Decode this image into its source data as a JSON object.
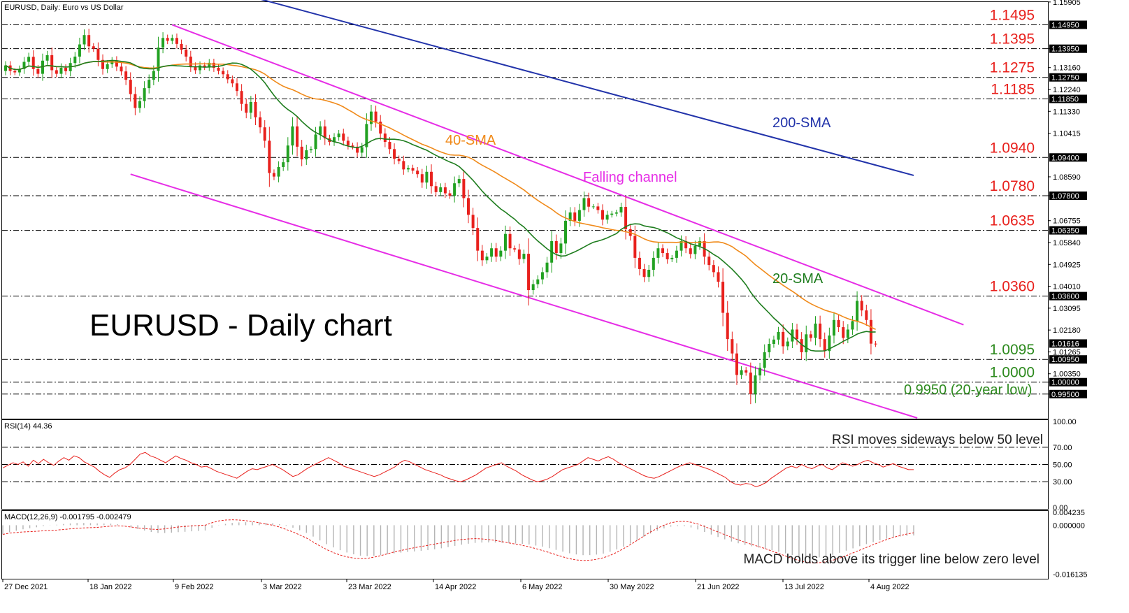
{
  "header": {
    "main_title": "EURUSD, Daily:  Euro vs US Dollar",
    "rsi_title": "RSI(14) 44.36",
    "macd_title": "MACD(12,26,9) -0.001795 -0.002479"
  },
  "overlay": {
    "big_title": "EURUSD - Daily chart",
    "sma200_label": "200-SMA",
    "sma40_label": "40-SMA",
    "sma20_label": "20-SMA",
    "channel_label": "Falling channel",
    "rsi_note": "RSI moves sideways below 50 level",
    "macd_note": "MACD holds above its trigger line below zero level",
    "low_note": "0.9950 (20-year low)"
  },
  "colors": {
    "bull": "#21a121",
    "bear": "#e8201c",
    "sma20": "#1e7d1e",
    "sma40": "#f08a1a",
    "sma200": "#2233aa",
    "channel": "#e62de6",
    "level_red": "#e8201c",
    "level_green": "#2d8a1e",
    "rsi_line": "#e8201c",
    "macd_signal": "#e8201c",
    "macd_hist": "#b4b4b4"
  },
  "chart_data": {
    "type": "candlestick",
    "title": "EURUSD, Daily:  Euro vs US Dollar",
    "x_labels": [
      "27 Dec 2021",
      "18 Jan 2022",
      "9 Feb 2022",
      "3 Mar 2022",
      "23 Mar 2022",
      "14 Apr 2022",
      "6 May 2022",
      "30 May 2022",
      "21 Jun 2022",
      "13 Jul 2022",
      "4 Aug 2022"
    ],
    "price_axis": {
      "ylim": [
        0.985,
        1.159
      ],
      "ticks": [
        "1.15905",
        "1.13950",
        "1.13160",
        "1.12240",
        "1.11330",
        "1.10415",
        "1.08590",
        "1.07800",
        "1.06755",
        "1.05840",
        "1.04925",
        "1.04010",
        "1.03095",
        "1.02180",
        "1.01265",
        "1.00350",
        "1.00000",
        "0.99500"
      ],
      "marked_levels": [
        {
          "value": 1.1495,
          "label": "1.1495",
          "tag": "1.14950",
          "color": "red"
        },
        {
          "value": 1.1395,
          "label": "1.1395",
          "tag": "1.13950",
          "color": "red"
        },
        {
          "value": 1.1275,
          "label": "1.1275",
          "tag": "1.12750",
          "color": "red"
        },
        {
          "value": 1.1185,
          "label": "1.1185",
          "tag": "1.11850",
          "color": "red"
        },
        {
          "value": 1.094,
          "label": "1.0940",
          "tag": "1.09400",
          "color": "red"
        },
        {
          "value": 1.078,
          "label": "1.0780",
          "tag": "1.07800",
          "color": "red"
        },
        {
          "value": 1.0635,
          "label": "1.0635",
          "tag": "1.06350",
          "color": "red"
        },
        {
          "value": 1.036,
          "label": "1.0360",
          "tag": "1.03600",
          "color": "red"
        },
        {
          "value": 1.0095,
          "label": "1.0095",
          "tag": "1.00950",
          "color": "green"
        },
        {
          "value": 1.0,
          "label": "1.0000",
          "tag": "1.00000",
          "color": "green"
        },
        {
          "value": 0.995,
          "label": "",
          "tag": "0.99500",
          "color": "green"
        }
      ],
      "current_price": {
        "value": 1.01616,
        "tag": "1.01616"
      }
    },
    "candles_close": [
      1.1325,
      1.1302,
      1.1296,
      1.131,
      1.134,
      1.1361,
      1.131,
      1.129,
      1.1345,
      1.1368,
      1.1305,
      1.129,
      1.1315,
      1.1301,
      1.1335,
      1.1362,
      1.1413,
      1.1452,
      1.1405,
      1.1395,
      1.1348,
      1.131,
      1.133,
      1.1345,
      1.132,
      1.13,
      1.1265,
      1.1205,
      1.1147,
      1.1176,
      1.123,
      1.1265,
      1.1302,
      1.14,
      1.144,
      1.1428,
      1.144,
      1.1415,
      1.1391,
      1.1362,
      1.1322,
      1.1305,
      1.1325,
      1.1318,
      1.1336,
      1.1315,
      1.1302,
      1.1288,
      1.1267,
      1.125,
      1.1218,
      1.1164,
      1.1127,
      1.1172,
      1.1108,
      1.1066,
      1.101,
      1.0875,
      1.086,
      1.09,
      1.092,
      1.099,
      1.107,
      1.0985,
      1.0932,
      1.097,
      1.0975,
      1.1036,
      1.107,
      1.102,
      1.1005,
      1.1025,
      1.104,
      1.101,
      1.099,
      1.0985,
      1.096,
      1.0983,
      1.108,
      1.1132,
      1.109,
      1.104,
      1.1005,
      1.0975,
      1.0935,
      1.0925,
      1.089,
      1.0896,
      1.0885,
      1.087,
      1.0835,
      1.088,
      1.082,
      1.0795,
      1.0815,
      1.079,
      1.078,
      1.0832,
      1.085,
      1.077,
      1.07,
      1.0645,
      1.055,
      1.051,
      1.0525,
      1.056,
      1.0525,
      1.055,
      1.062,
      1.056,
      1.0555,
      1.0515,
      1.0537,
      1.0385,
      1.041,
      1.043,
      1.046,
      1.05,
      1.059,
      1.054,
      1.058,
      1.0675,
      1.071,
      1.0675,
      1.072,
      1.077,
      1.0734,
      1.0735,
      1.072,
      1.068,
      1.07,
      1.0705,
      1.071,
      1.0733,
      1.064,
      1.0612,
      1.052,
      1.0473,
      1.044,
      1.047,
      1.052,
      1.056,
      1.054,
      1.0514,
      1.052,
      1.055,
      1.059,
      1.056,
      1.0536,
      1.057,
      1.059,
      1.0525,
      1.049,
      1.046,
      1.042,
      1.029,
      1.018,
      1.012,
      1.003,
      1.005,
      1.004,
      0.995,
      1.0028,
      1.006,
      1.0125,
      1.016,
      1.0178,
      1.021,
      1.015,
      1.017,
      1.022,
      1.018,
      1.0125,
      1.02,
      1.0185,
      1.0245,
      1.018,
      1.013,
      1.0195,
      1.026,
      1.023,
      1.0185,
      1.022,
      1.0255,
      1.034,
      1.03,
      1.026,
      1.0161,
      1.0158
    ],
    "candles_open": [
      1.1302,
      1.1325,
      1.1302,
      1.1296,
      1.131,
      1.134,
      1.1361,
      1.131,
      1.129,
      1.1345,
      1.1368,
      1.1305,
      1.129,
      1.1315,
      1.1301,
      1.1335,
      1.1362,
      1.1413,
      1.1452,
      1.1405,
      1.1395,
      1.1348,
      1.131,
      1.133,
      1.1345,
      1.132,
      1.13,
      1.1265,
      1.1205,
      1.1147,
      1.1176,
      1.123,
      1.1265,
      1.1302,
      1.14,
      1.144,
      1.1428,
      1.144,
      1.1415,
      1.1391,
      1.1362,
      1.1322,
      1.1305,
      1.1325,
      1.1318,
      1.1336,
      1.1315,
      1.1302,
      1.1288,
      1.1267,
      1.125,
      1.1218,
      1.1164,
      1.1127,
      1.1172,
      1.1108,
      1.1066,
      1.101,
      1.0875,
      1.086,
      1.09,
      1.092,
      1.099,
      1.107,
      1.0985,
      1.0932,
      1.097,
      1.0975,
      1.1036,
      1.107,
      1.102,
      1.1005,
      1.1025,
      1.104,
      1.101,
      1.099,
      1.0985,
      1.096,
      1.0983,
      1.108,
      1.1132,
      1.109,
      1.104,
      1.1005,
      1.0975,
      1.0935,
      1.0925,
      1.089,
      1.0896,
      1.0885,
      1.087,
      1.0835,
      1.088,
      1.082,
      1.0795,
      1.0815,
      1.079,
      1.078,
      1.0832,
      1.085,
      1.077,
      1.07,
      1.0645,
      1.055,
      1.051,
      1.0525,
      1.056,
      1.0525,
      1.055,
      1.062,
      1.056,
      1.0555,
      1.0515,
      1.0537,
      1.0385,
      1.041,
      1.043,
      1.046,
      1.05,
      1.059,
      1.054,
      1.058,
      1.0675,
      1.071,
      1.0675,
      1.072,
      1.077,
      1.0734,
      1.0735,
      1.072,
      1.068,
      1.07,
      1.0705,
      1.071,
      1.0733,
      1.064,
      1.0612,
      1.052,
      1.0473,
      1.044,
      1.047,
      1.052,
      1.056,
      1.054,
      1.0514,
      1.052,
      1.055,
      1.059,
      1.056,
      1.0536,
      1.057,
      1.059,
      1.0525,
      1.049,
      1.046,
      1.042,
      1.029,
      1.018,
      1.012,
      1.003,
      1.005,
      1.004,
      0.995,
      1.0028,
      1.006,
      1.0125,
      1.016,
      1.0178,
      1.021,
      1.015,
      1.017,
      1.022,
      1.018,
      1.0125,
      1.02,
      1.0185,
      1.0245,
      1.018,
      1.013,
      1.0195,
      1.026,
      1.023,
      1.0185,
      1.022,
      1.0255,
      1.034,
      1.03,
      1.026,
      1.0161
    ],
    "sma200": {
      "label": "200-SMA",
      "start": 1.162,
      "end": 1.0865
    },
    "channel": {
      "label": "Falling channel",
      "upper": [
        [
          36,
          1.1495
        ],
        [
          207,
          1.024
        ]
      ],
      "lower": [
        [
          27,
          1.087
        ],
        [
          197,
          0.985
        ]
      ]
    },
    "rsi": {
      "name": "RSI(14)",
      "last": 44.36,
      "ylim": [
        0,
        100
      ],
      "ticks": [
        "100.00",
        "70.00",
        "50.00",
        "30.00",
        "0.00"
      ],
      "values": [
        46,
        49,
        52,
        50,
        53,
        48,
        55,
        51,
        56,
        52,
        49,
        54,
        58,
        55,
        60,
        58,
        53,
        50,
        47,
        42,
        38,
        35,
        40,
        44,
        46,
        50,
        56,
        62,
        64,
        60,
        58,
        55,
        52,
        56,
        60,
        57,
        55,
        52,
        50,
        47,
        48,
        45,
        42,
        40,
        38,
        36,
        34,
        38,
        42,
        45,
        44,
        46,
        48,
        50,
        47,
        44,
        40,
        36,
        38,
        42,
        46,
        49,
        52,
        55,
        58,
        55,
        52,
        48,
        46,
        44,
        42,
        40,
        38,
        36,
        38,
        41,
        44,
        47,
        52,
        55,
        53,
        50,
        47,
        44,
        42,
        40,
        38,
        35,
        33,
        31,
        30,
        32,
        35,
        38,
        42,
        46,
        48,
        50,
        52,
        48,
        45,
        42,
        38,
        35,
        32,
        30,
        31,
        33,
        36,
        40,
        44,
        46,
        48,
        50,
        54,
        58,
        56,
        54,
        57,
        59,
        56,
        52,
        49,
        46,
        43,
        40,
        37,
        35,
        34,
        36,
        39,
        42,
        45,
        48,
        50,
        52,
        50,
        48,
        46,
        44,
        41,
        38,
        35,
        30,
        27,
        26,
        28,
        27,
        24,
        26,
        29,
        34,
        38,
        42,
        46,
        48,
        46,
        50,
        47,
        45,
        48,
        50,
        46,
        44,
        48,
        52,
        50,
        48,
        50,
        53,
        55,
        52,
        50,
        47,
        49,
        51,
        48,
        46,
        44,
        44
      ],
      "note": "RSI moves sideways below 50 level"
    },
    "macd": {
      "name": "MACD(12,26,9)",
      "main": -0.001795,
      "signal": -0.002479,
      "ylim": [
        -0.01713,
        0.00423
      ],
      "ticks": [
        "0.004235",
        "0.000000",
        "-0.016135"
      ],
      "signal_values": [
        -0.003,
        -0.0026,
        -0.0024,
        -0.0022,
        -0.0021,
        -0.002,
        -0.0018,
        -0.0017,
        -0.0016,
        -0.0014,
        -0.0012,
        -0.001,
        -0.0009,
        -0.0008,
        -0.0007,
        -0.0005,
        -0.0003,
        -0.0002,
        -0.0003,
        -0.0006,
        -0.0009,
        -0.0011,
        -0.0013,
        -0.0014,
        -0.0012,
        -0.0009,
        -0.0006,
        -0.0004,
        -0.0002,
        -0.0001,
        0.0,
        0.0008,
        0.0014,
        0.0017,
        0.0018,
        0.0017,
        0.0015,
        0.0012,
        0.0008,
        0.0004,
        0.0,
        -0.0006,
        -0.0014,
        -0.0022,
        -0.0032,
        -0.0042,
        -0.0055,
        -0.0068,
        -0.008,
        -0.009,
        -0.0098,
        -0.0104,
        -0.0108,
        -0.011,
        -0.0109,
        -0.0105,
        -0.01,
        -0.0094,
        -0.0088,
        -0.0083,
        -0.0078,
        -0.0074,
        -0.007,
        -0.0066,
        -0.0062,
        -0.0058,
        -0.0054,
        -0.005,
        -0.0047,
        -0.0045,
        -0.0044,
        -0.0045,
        -0.0047,
        -0.005,
        -0.0054,
        -0.0058,
        -0.0062,
        -0.0066,
        -0.0071,
        -0.0077,
        -0.0083,
        -0.009,
        -0.0097,
        -0.0104,
        -0.011,
        -0.0114,
        -0.0116,
        -0.0115,
        -0.0112,
        -0.0107,
        -0.0099,
        -0.0089,
        -0.0077,
        -0.0064,
        -0.005,
        -0.0036,
        -0.0022,
        -0.001,
        0.0,
        0.0008,
        0.0012,
        0.0013,
        0.001,
        0.0004,
        -0.0004,
        -0.0013,
        -0.0022,
        -0.0031,
        -0.004,
        -0.0048,
        -0.0056,
        -0.0063,
        -0.007,
        -0.0077,
        -0.0085,
        -0.0093,
        -0.0101,
        -0.0109,
        -0.0116,
        -0.0121,
        -0.0124,
        -0.0123,
        -0.012,
        -0.0115,
        -0.0108,
        -0.01,
        -0.0091,
        -0.0082,
        -0.0073,
        -0.0064,
        -0.0055,
        -0.0047,
        -0.004,
        -0.0034,
        -0.0029,
        -0.0025
      ],
      "note": "MACD holds above its trigger line below zero level"
    }
  }
}
